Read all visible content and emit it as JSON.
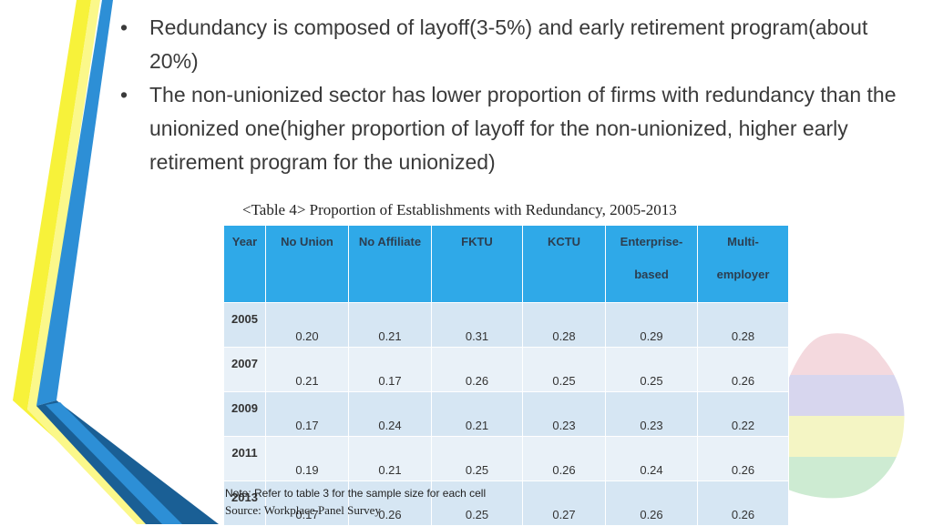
{
  "bullets": [
    "Redundancy is composed of layoff(3-5%) and early retirement program(about 20%)",
    "The non-unionized sector has lower proportion of firms with redundancy than the unionized one(higher proportion of layoff for the non-unionized, higher early retirement program for the unionized)"
  ],
  "bullet_glyph": "•",
  "table": {
    "caption": "<Table 4> Proportion of Establishments with Redundancy, 2005-2013",
    "headers": {
      "year": "Year",
      "no_union": "No Union",
      "no_affiliate": "No Affiliate",
      "fktu": "FKTU",
      "kctu": "KCTU",
      "enterprise_l1": "Enterprise-",
      "enterprise_l2": "based",
      "multi_l1": "Multi-",
      "multi_l2": "employer"
    },
    "rows": [
      {
        "year": "2005",
        "values": [
          "0.20",
          "0.21",
          "0.31",
          "0.28",
          "0.29",
          "0.28"
        ]
      },
      {
        "year": "2007",
        "values": [
          "0.21",
          "0.17",
          "0.26",
          "0.25",
          "0.25",
          "0.26"
        ]
      },
      {
        "year": "2009",
        "values": [
          "0.17",
          "0.24",
          "0.21",
          "0.23",
          "0.23",
          "0.22"
        ]
      },
      {
        "year": "2011",
        "values": [
          "0.19",
          "0.21",
          "0.25",
          "0.26",
          "0.24",
          "0.26"
        ]
      },
      {
        "year": "2013",
        "values": [
          "0.17",
          "0.26",
          "0.25",
          "0.27",
          "0.26",
          "0.26"
        ]
      }
    ]
  },
  "note": "Note: Refer to table 3 for the sample size for each cell",
  "source": "Source: Workplace Panel Survey",
  "colors": {
    "header_bg": "#2fa9e8",
    "row_dark": "#d6e6f3",
    "row_light": "#e9f1f8",
    "deco_yellow": "#f7f23a",
    "deco_blue": "#2d8fd6",
    "deco_dark_blue": "#1a5f95",
    "map_red": "#f4d9de",
    "map_blue": "#d7d6ee",
    "map_yellow": "#f4f5c4",
    "map_green": "#cdebd2"
  }
}
